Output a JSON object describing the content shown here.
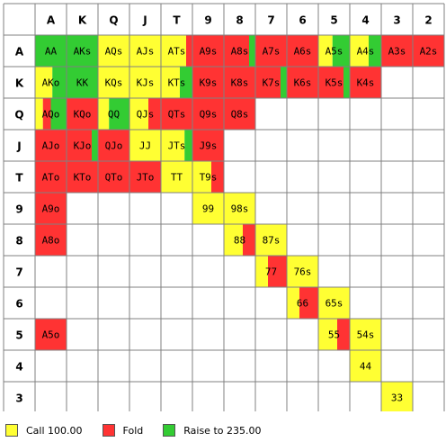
{
  "colors": {
    "call": "#ffff33",
    "fold": "#ff3333",
    "raise": "#33cc33",
    "grid_line": "#808080",
    "empty": "#ffffff"
  },
  "ranks": [
    "A",
    "K",
    "Q",
    "J",
    "T",
    "9",
    "8",
    "7",
    "6",
    "5",
    "4",
    "3",
    "2"
  ],
  "cells": [
    {
      "r": 0,
      "c": 0,
      "label": "AA",
      "segments": [
        [
          "raise",
          1
        ]
      ]
    },
    {
      "r": 0,
      "c": 1,
      "label": "AKs",
      "segments": [
        [
          "raise",
          1
        ]
      ]
    },
    {
      "r": 0,
      "c": 2,
      "label": "AQs",
      "segments": [
        [
          "call",
          1
        ]
      ]
    },
    {
      "r": 0,
      "c": 3,
      "label": "AJs",
      "segments": [
        [
          "call",
          1
        ]
      ]
    },
    {
      "r": 0,
      "c": 4,
      "label": "ATs",
      "segments": [
        [
          "call",
          0.8
        ],
        [
          "fold",
          0.2
        ]
      ]
    },
    {
      "r": 0,
      "c": 5,
      "label": "A9s",
      "segments": [
        [
          "fold",
          1
        ]
      ]
    },
    {
      "r": 0,
      "c": 6,
      "label": "A8s",
      "segments": [
        [
          "fold",
          0.8
        ],
        [
          "raise",
          0.2
        ]
      ]
    },
    {
      "r": 0,
      "c": 7,
      "label": "A7s",
      "segments": [
        [
          "fold",
          1
        ]
      ]
    },
    {
      "r": 0,
      "c": 8,
      "label": "A6s",
      "segments": [
        [
          "fold",
          1
        ]
      ]
    },
    {
      "r": 0,
      "c": 9,
      "label": "A5s",
      "segments": [
        [
          "call",
          0.45
        ],
        [
          "raise",
          0.55
        ]
      ]
    },
    {
      "r": 0,
      "c": 10,
      "label": "A4s",
      "segments": [
        [
          "call",
          0.6
        ],
        [
          "raise",
          0.4
        ]
      ]
    },
    {
      "r": 0,
      "c": 11,
      "label": "A3s",
      "segments": [
        [
          "fold",
          1
        ]
      ]
    },
    {
      "r": 0,
      "c": 12,
      "label": "A2s",
      "segments": [
        [
          "fold",
          1
        ]
      ]
    },
    {
      "r": 1,
      "c": 0,
      "label": "AKo",
      "segments": [
        [
          "call",
          0.55
        ],
        [
          "raise",
          0.45
        ]
      ]
    },
    {
      "r": 1,
      "c": 1,
      "label": "KK",
      "segments": [
        [
          "raise",
          1
        ]
      ]
    },
    {
      "r": 1,
      "c": 2,
      "label": "KQs",
      "segments": [
        [
          "call",
          1
        ]
      ]
    },
    {
      "r": 1,
      "c": 3,
      "label": "KJs",
      "segments": [
        [
          "call",
          1
        ]
      ]
    },
    {
      "r": 1,
      "c": 4,
      "label": "KTs",
      "segments": [
        [
          "call",
          0.6
        ],
        [
          "raise",
          0.4
        ]
      ]
    },
    {
      "r": 1,
      "c": 5,
      "label": "K9s",
      "segments": [
        [
          "fold",
          1
        ]
      ]
    },
    {
      "r": 1,
      "c": 6,
      "label": "K8s",
      "segments": [
        [
          "fold",
          1
        ]
      ]
    },
    {
      "r": 1,
      "c": 7,
      "label": "K7s",
      "segments": [
        [
          "fold",
          0.8
        ],
        [
          "raise",
          0.2
        ]
      ]
    },
    {
      "r": 1,
      "c": 8,
      "label": "K6s",
      "segments": [
        [
          "fold",
          1
        ]
      ]
    },
    {
      "r": 1,
      "c": 9,
      "label": "K5s",
      "segments": [
        [
          "fold",
          0.8
        ],
        [
          "raise",
          0.2
        ]
      ]
    },
    {
      "r": 1,
      "c": 10,
      "label": "K4s",
      "segments": [
        [
          "fold",
          1
        ]
      ]
    },
    {
      "r": 2,
      "c": 0,
      "label": "AQo",
      "segments": [
        [
          "call",
          0.25
        ],
        [
          "fold",
          0.25
        ],
        [
          "raise",
          0.5
        ]
      ]
    },
    {
      "r": 2,
      "c": 1,
      "label": "KQo",
      "segments": [
        [
          "fold",
          1
        ]
      ]
    },
    {
      "r": 2,
      "c": 2,
      "label": "QQ",
      "segments": [
        [
          "call",
          0.35
        ],
        [
          "raise",
          0.65
        ]
      ]
    },
    {
      "r": 2,
      "c": 3,
      "label": "QJs",
      "segments": [
        [
          "call",
          0.6
        ],
        [
          "fold",
          0.4
        ]
      ]
    },
    {
      "r": 2,
      "c": 4,
      "label": "QTs",
      "segments": [
        [
          "fold",
          1
        ]
      ]
    },
    {
      "r": 2,
      "c": 5,
      "label": "Q9s",
      "segments": [
        [
          "fold",
          1
        ]
      ]
    },
    {
      "r": 2,
      "c": 6,
      "label": "Q8s",
      "segments": [
        [
          "fold",
          1
        ]
      ]
    },
    {
      "r": 3,
      "c": 0,
      "label": "AJo",
      "segments": [
        [
          "fold",
          1
        ]
      ]
    },
    {
      "r": 3,
      "c": 1,
      "label": "KJo",
      "segments": [
        [
          "fold",
          0.8
        ],
        [
          "raise",
          0.2
        ]
      ]
    },
    {
      "r": 3,
      "c": 2,
      "label": "QJo",
      "segments": [
        [
          "fold",
          1
        ]
      ]
    },
    {
      "r": 3,
      "c": 3,
      "label": "JJ",
      "segments": [
        [
          "call",
          1
        ]
      ]
    },
    {
      "r": 3,
      "c": 4,
      "label": "JTs",
      "segments": [
        [
          "call",
          0.75
        ],
        [
          "raise",
          0.25
        ]
      ]
    },
    {
      "r": 3,
      "c": 5,
      "label": "J9s",
      "segments": [
        [
          "fold",
          1
        ]
      ]
    },
    {
      "r": 4,
      "c": 0,
      "label": "ATo",
      "segments": [
        [
          "fold",
          1
        ]
      ]
    },
    {
      "r": 4,
      "c": 1,
      "label": "KTo",
      "segments": [
        [
          "fold",
          1
        ]
      ]
    },
    {
      "r": 4,
      "c": 2,
      "label": "QTo",
      "segments": [
        [
          "fold",
          1
        ]
      ]
    },
    {
      "r": 4,
      "c": 3,
      "label": "JTo",
      "segments": [
        [
          "fold",
          1
        ]
      ]
    },
    {
      "r": 4,
      "c": 4,
      "label": "TT",
      "segments": [
        [
          "call",
          1
        ]
      ]
    },
    {
      "r": 4,
      "c": 5,
      "label": "T9s",
      "segments": [
        [
          "call",
          0.6
        ],
        [
          "fold",
          0.4
        ]
      ]
    },
    {
      "r": 5,
      "c": 0,
      "label": "A9o",
      "segments": [
        [
          "fold",
          1
        ]
      ]
    },
    {
      "r": 5,
      "c": 5,
      "label": "99",
      "segments": [
        [
          "call",
          1
        ]
      ]
    },
    {
      "r": 5,
      "c": 6,
      "label": "98s",
      "segments": [
        [
          "call",
          1
        ]
      ]
    },
    {
      "r": 6,
      "c": 0,
      "label": "A8o",
      "segments": [
        [
          "fold",
          1
        ]
      ]
    },
    {
      "r": 6,
      "c": 6,
      "label": "88",
      "segments": [
        [
          "call",
          0.6
        ],
        [
          "fold",
          0.4
        ]
      ]
    },
    {
      "r": 6,
      "c": 7,
      "label": "87s",
      "segments": [
        [
          "call",
          1
        ]
      ]
    },
    {
      "r": 7,
      "c": 7,
      "label": "77",
      "segments": [
        [
          "call",
          0.4
        ],
        [
          "fold",
          0.6
        ]
      ]
    },
    {
      "r": 7,
      "c": 8,
      "label": "76s",
      "segments": [
        [
          "call",
          1
        ]
      ]
    },
    {
      "r": 8,
      "c": 8,
      "label": "66",
      "segments": [
        [
          "call",
          0.4
        ],
        [
          "fold",
          0.6
        ]
      ]
    },
    {
      "r": 8,
      "c": 9,
      "label": "65s",
      "segments": [
        [
          "call",
          1
        ]
      ]
    },
    {
      "r": 9,
      "c": 0,
      "label": "A5o",
      "segments": [
        [
          "fold",
          1
        ]
      ]
    },
    {
      "r": 9,
      "c": 9,
      "label": "55",
      "segments": [
        [
          "call",
          0.6
        ],
        [
          "fold",
          0.4
        ]
      ]
    },
    {
      "r": 9,
      "c": 10,
      "label": "54s",
      "segments": [
        [
          "call",
          1
        ]
      ]
    },
    {
      "r": 10,
      "c": 10,
      "label": "44",
      "segments": [
        [
          "call",
          1
        ]
      ]
    },
    {
      "r": 11,
      "c": 11,
      "label": "33",
      "segments": [
        [
          "call",
          1
        ]
      ]
    }
  ],
  "legend": [
    {
      "key": "call",
      "label": "Call 100.00"
    },
    {
      "key": "fold",
      "label": "Fold"
    },
    {
      "key": "raise",
      "label": "Raise to 235.00"
    }
  ]
}
